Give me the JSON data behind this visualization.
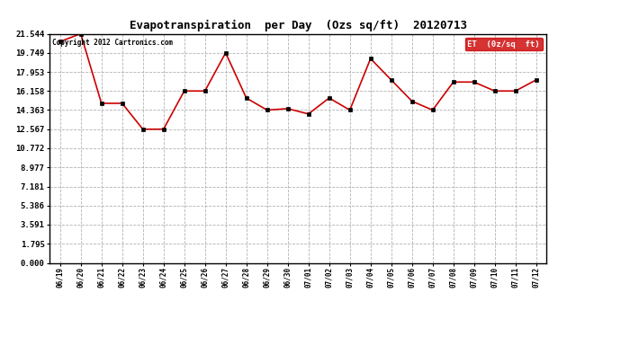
{
  "title": "Evapotranspiration  per Day  (Ozs sq/ft)  20120713",
  "copyright": "Copyright 2012 Cartronics.com",
  "legend_label": "ET  (0z/sq  ft)",
  "x_labels": [
    "06/19",
    "06/20",
    "06/21",
    "06/22",
    "06/23",
    "06/24",
    "06/25",
    "06/26",
    "06/27",
    "06/28",
    "06/29",
    "06/30",
    "07/01",
    "07/02",
    "07/03",
    "07/04",
    "07/05",
    "07/06",
    "07/07",
    "07/08",
    "07/09",
    "07/10",
    "07/11",
    "07/12"
  ],
  "y_values": [
    20.8,
    21.544,
    15.0,
    15.0,
    12.567,
    12.567,
    16.158,
    16.158,
    19.749,
    15.5,
    14.363,
    14.5,
    14.0,
    15.5,
    14.363,
    19.2,
    17.2,
    15.2,
    14.363,
    17.0,
    17.0,
    16.158,
    16.158,
    17.2
  ],
  "y_ticks": [
    0.0,
    1.795,
    3.591,
    5.386,
    7.181,
    8.977,
    10.772,
    12.567,
    14.363,
    16.158,
    17.953,
    19.749,
    21.544
  ],
  "ylim": [
    0.0,
    21.544
  ],
  "line_color": "#cc0000",
  "marker_color": "#000000",
  "bg_color": "#ffffff",
  "grid_color": "#aaaaaa",
  "title_fontsize": 9,
  "copyright_fontsize": 5.5,
  "ytick_fontsize": 6.5,
  "xtick_fontsize": 5.5,
  "legend_bg": "#cc0000",
  "legend_fg": "#ffffff",
  "legend_fontsize": 6.5
}
